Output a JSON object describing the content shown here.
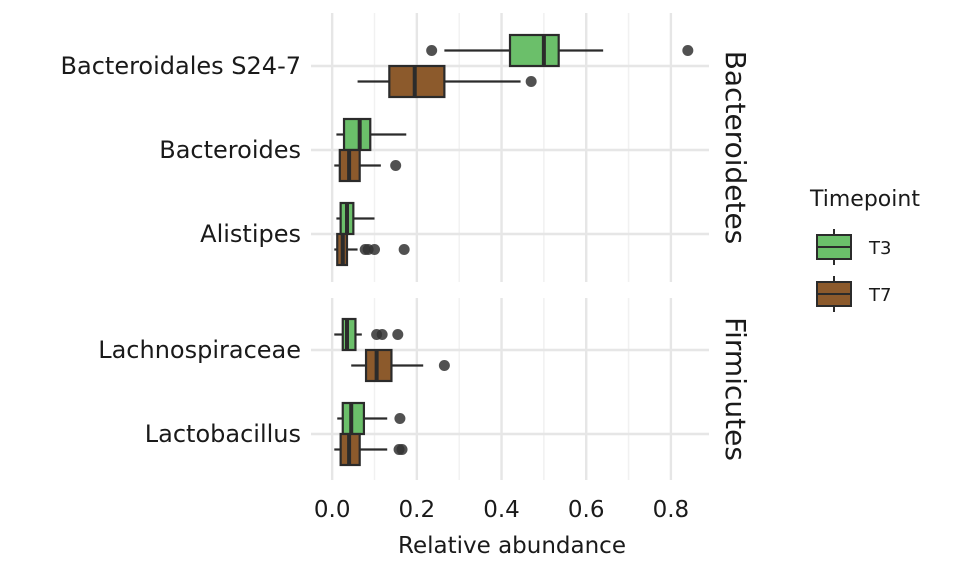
{
  "chart_data": {
    "type": "boxplot",
    "xlabel": "Relative abundance",
    "xlim": [
      -0.05,
      0.89
    ],
    "xticks": [
      0.0,
      0.2,
      0.4,
      0.6,
      0.8
    ],
    "xtick_labels": [
      "0.0",
      "0.2",
      "0.4",
      "0.6",
      "0.8"
    ],
    "grid": true,
    "legend": {
      "title": "Timepoint",
      "position": "right",
      "entries": [
        {
          "name": "T3",
          "color": "#6bbf6a"
        },
        {
          "name": "T7",
          "color": "#8c5a2c"
        }
      ]
    },
    "facets": [
      {
        "label": "Bacteroidetes",
        "categories": [
          "Bacteroidales S24-7",
          "Bacteroides",
          "Alistipes"
        ],
        "boxes": [
          {
            "category": "Bacteroidales S24-7",
            "group": "T3",
            "whisker_low": 0.265,
            "q1": 0.42,
            "median": 0.5,
            "q3": 0.535,
            "whisker_high": 0.64,
            "outliers": [
              0.235,
              0.84
            ]
          },
          {
            "category": "Bacteroidales S24-7",
            "group": "T7",
            "whisker_low": 0.06,
            "q1": 0.135,
            "median": 0.195,
            "q3": 0.265,
            "whisker_high": 0.445,
            "outliers": [
              0.47
            ]
          },
          {
            "category": "Bacteroides",
            "group": "T3",
            "whisker_low": 0.01,
            "q1": 0.028,
            "median": 0.065,
            "q3": 0.09,
            "whisker_high": 0.175,
            "outliers": []
          },
          {
            "category": "Bacteroides",
            "group": "T7",
            "whisker_low": 0.005,
            "q1": 0.018,
            "median": 0.04,
            "q3": 0.065,
            "whisker_high": 0.115,
            "outliers": [
              0.15
            ]
          },
          {
            "category": "Alistipes",
            "group": "T3",
            "whisker_low": 0.01,
            "q1": 0.02,
            "median": 0.035,
            "q3": 0.05,
            "whisker_high": 0.1,
            "outliers": []
          },
          {
            "category": "Alistipes",
            "group": "T7",
            "whisker_low": 0.005,
            "q1": 0.012,
            "median": 0.025,
            "q3": 0.035,
            "whisker_high": 0.06,
            "outliers": [
              0.078,
              0.085,
              0.1,
              0.17
            ]
          }
        ]
      },
      {
        "label": "Firmicutes",
        "categories": [
          "Lachnospiraceae",
          "Lactobacillus"
        ],
        "boxes": [
          {
            "category": "Lachnospiraceae",
            "group": "T3",
            "whisker_low": 0.005,
            "q1": 0.025,
            "median": 0.035,
            "q3": 0.055,
            "whisker_high": 0.07,
            "outliers": [
              0.105,
              0.118,
              0.155
            ]
          },
          {
            "category": "Lachnospiraceae",
            "group": "T7",
            "whisker_low": 0.045,
            "q1": 0.08,
            "median": 0.105,
            "q3": 0.14,
            "whisker_high": 0.215,
            "outliers": [
              0.265
            ]
          },
          {
            "category": "Lactobacillus",
            "group": "T3",
            "whisker_low": 0.012,
            "q1": 0.025,
            "median": 0.045,
            "q3": 0.075,
            "whisker_high": 0.13,
            "outliers": [
              0.16
            ]
          },
          {
            "category": "Lactobacillus",
            "group": "T7",
            "whisker_low": 0.005,
            "q1": 0.02,
            "median": 0.04,
            "q3": 0.065,
            "whisker_high": 0.13,
            "outliers": [
              0.158,
              0.165
            ]
          }
        ]
      }
    ]
  }
}
